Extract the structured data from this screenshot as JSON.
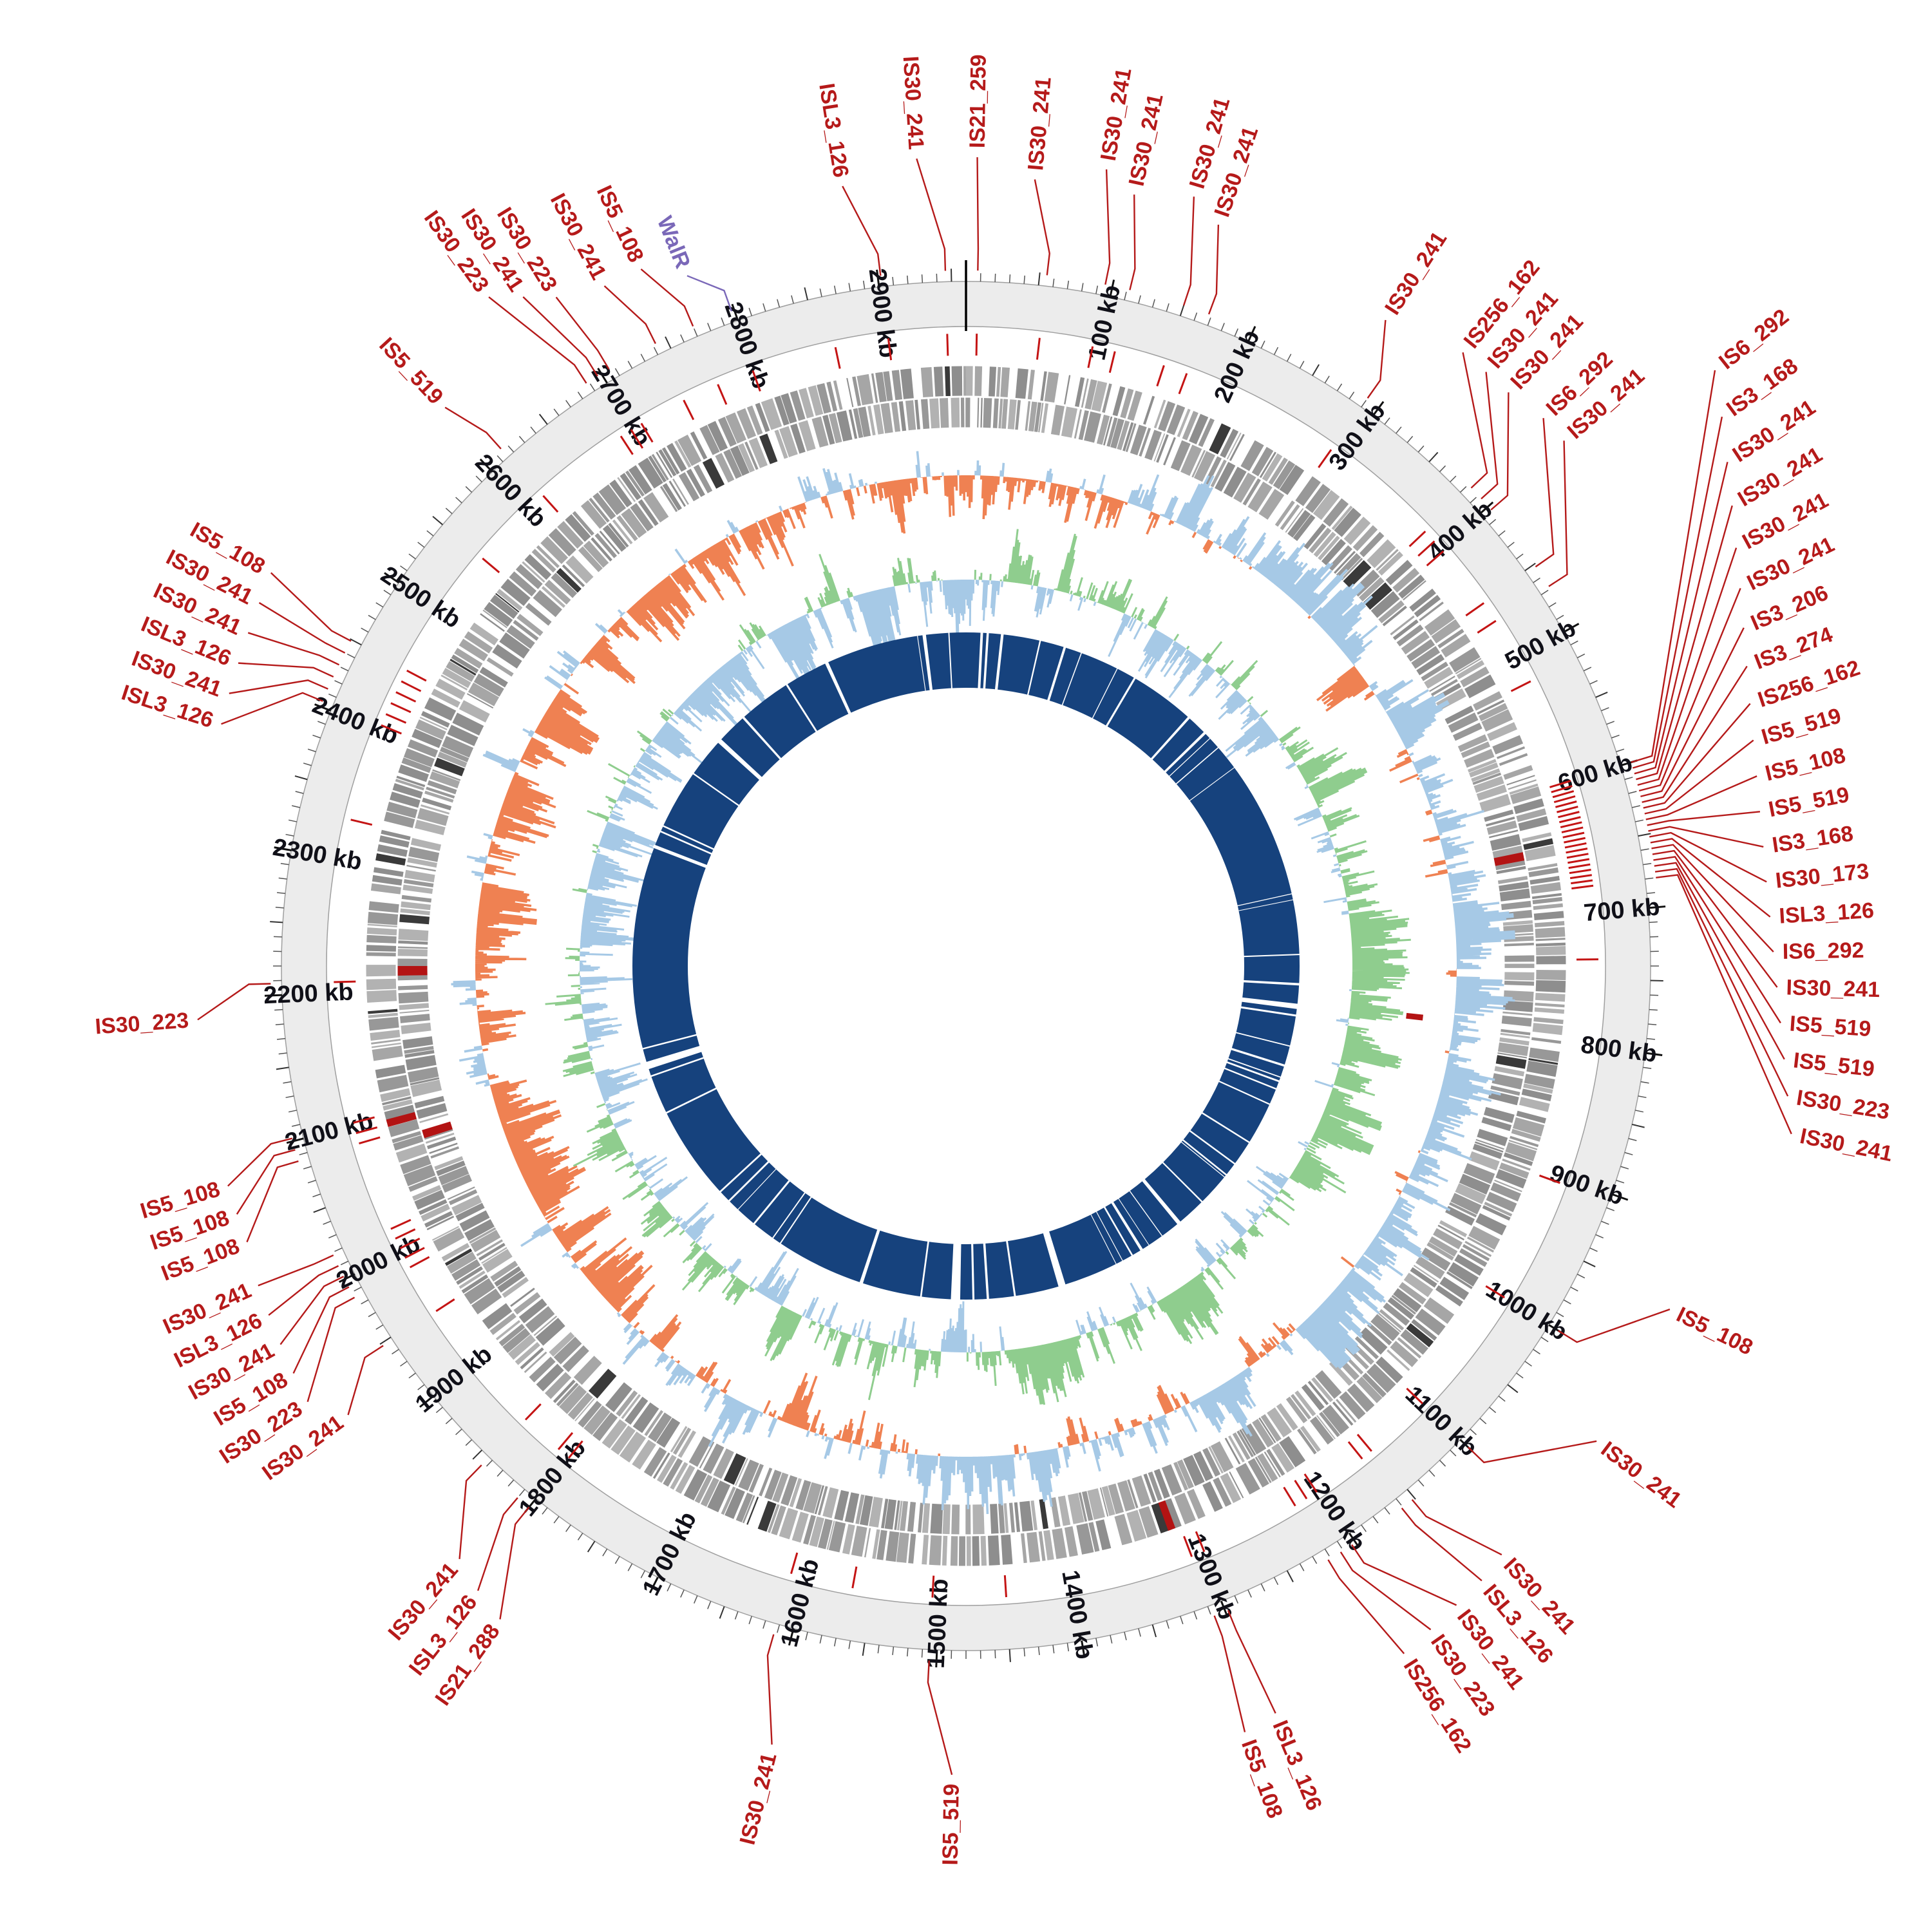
{
  "figure": {
    "kind": "circular genome map with insertion-sequence annotations",
    "aria": "Circular genome plot with IS element labels"
  },
  "chart_data": {
    "type": "circular-genome-map",
    "genome_length_kb": 2960,
    "tick_interval_kb": 100,
    "tick_unit": "kb",
    "tick_labels": [
      "100 kb",
      "200 kb",
      "300 kb",
      "400 kb",
      "500 kb",
      "600 kb",
      "700 kb",
      "800 kb",
      "900 kb",
      "1000 kb",
      "1100 kb",
      "1200 kb",
      "1300 kb",
      "1400 kb",
      "1500 kb",
      "1600 kb",
      "1700 kb",
      "1800 kb",
      "1900 kb",
      "2000 kb",
      "2100 kb",
      "2200 kb",
      "2300 kb",
      "2400 kb",
      "2500 kb",
      "2600 kb",
      "2700 kb",
      "2800 kb",
      "2900 kb"
    ],
    "colors": {
      "label_red": "#b51a1a",
      "walr_purple": "#7a68b8",
      "band_fill": "#ececec",
      "band_edge": "#9f9f9f",
      "tick_minor": "#555555",
      "tick_mid": "#333333",
      "tick_major": "#111111",
      "gene_grays": [
        "#989898",
        "#a6a6a6",
        "#8e8e8e",
        "#b2b2b2"
      ],
      "gene_dark": "#3a3a3a",
      "red_tick": "#c41414",
      "red_block": "#b31313",
      "navy": "#16427d"
    },
    "band": {
      "r_in": 993,
      "r_out": 1063
    },
    "ticks": {
      "minor_kb": 10,
      "mid_kb": 50,
      "major_kb": 100,
      "label_r": 1022
    },
    "red_tick_ring": {
      "r0": 948,
      "r1": 982,
      "width": 3
    },
    "gene_rows": [
      {
        "mid": 908.5,
        "h": 46,
        "seed": 11
      },
      {
        "mid": 859.5,
        "h": 46,
        "seed": 12
      }
    ],
    "hist_samples": 1600,
    "hist_tracks": [
      {
        "name": "gc-skew",
        "base": 762,
        "amp": 92,
        "seed": 21,
        "bias": 0.45,
        "phase": 0,
        "pos": "#a6c9e6",
        "neg": "#ef8152"
      },
      {
        "name": "gc-content",
        "base": 600,
        "amp": 92,
        "seed": 33,
        "bias": 0.3,
        "phase": 50,
        "pos": "#8fcd8e",
        "neg": "#a6c9e6"
      }
    ],
    "inner_ring": {
      "mid": 475,
      "width": 86,
      "seed": 77,
      "gap_count": 56,
      "extra_gaps": [
        {
          "a": 6,
          "w": 0.5
        },
        {
          "a": 17,
          "w": 0.45
        },
        {
          "a": 96.5,
          "w": 0.9
        },
        {
          "a": 140,
          "w": 0.7
        },
        {
          "a": 148,
          "w": 0.5
        },
        {
          "a": 163,
          "w": 0.9
        },
        {
          "a": 181,
          "w": 1.6
        },
        {
          "a": 198,
          "w": 0.6
        },
        {
          "a": 252,
          "w": 1.3
        },
        {
          "a": 312,
          "w": 0.8
        },
        {
          "a": 335,
          "w": 0.6
        },
        {
          "a": 352.5,
          "w": 0.6
        }
      ]
    },
    "red_blocks": [
      {
        "kb": 645,
        "mid": 859.5,
        "h": 46,
        "w": 7
      },
      {
        "kb": 790,
        "mid": 701,
        "h": 26,
        "w": 6
      },
      {
        "kb": 1312,
        "mid": 908.5,
        "h": 46,
        "w": 6
      },
      {
        "kb": 2075,
        "mid": 859.5,
        "h": 46,
        "w": 7
      },
      {
        "kb": 2092,
        "mid": 908.5,
        "h": 46,
        "w": 6
      },
      {
        "kb": 2212,
        "mid": 859.5,
        "h": 46,
        "w": 8
      }
    ],
    "extra_red_tick_kb": [
      520,
      735,
      905,
      1450,
      1565,
      2330,
      2550,
      2862
    ],
    "leaders": {
      "r_start": 1080,
      "r_elbow": 1114,
      "width": 2.4
    },
    "is_labels": [
      {
        "t": "IS5_519",
        "kb": 2615,
        "la": 317,
        "lr": 1200
      },
      {
        "t": "IS30_223",
        "kb": 2688,
        "la": 324.5,
        "lr": 1290
      },
      {
        "t": "IS30_241",
        "kb": 2697,
        "la": 326.5,
        "lr": 1260
      },
      {
        "t": "IS30_223",
        "kb": 2706,
        "la": 328.5,
        "lr": 1232
      },
      {
        "t": "IS30_241",
        "kb": 2742,
        "la": 332,
        "lr": 1210
      },
      {
        "t": "IS5_108",
        "kb": 2770,
        "la": 335,
        "lr": 1208
      },
      {
        "t": "WalR",
        "kb": 2798,
        "la": 338,
        "lr": 1170,
        "color": "#7a68b8"
      },
      {
        "t": "ISL3_126",
        "kb": 2902,
        "la": 351,
        "lr": 1240
      },
      {
        "t": "IS30_241",
        "kb": 2946,
        "la": 356.5,
        "lr": 1270
      },
      {
        "t": "IS21_259",
        "kb": 8,
        "la": 0.8,
        "lr": 1270
      },
      {
        "t": "IS30_241",
        "kb": 55,
        "la": 5,
        "lr": 1240
      },
      {
        "t": "IS30_241",
        "kb": 95,
        "la": 10,
        "lr": 1270
      },
      {
        "t": "IS30_241",
        "kb": 112,
        "la": 12.3,
        "lr": 1240
      },
      {
        "t": "IS30_241",
        "kb": 150,
        "la": 16.5,
        "lr": 1260
      },
      {
        "t": "IS30_241",
        "kb": 168,
        "la": 18.8,
        "lr": 1230
      },
      {
        "t": "IS30_241",
        "kb": 290,
        "la": 33,
        "lr": 1210
      },
      {
        "t": "IS256_162",
        "kb": 383,
        "la": 39,
        "lr": 1240
      },
      {
        "t": "IS30_241",
        "kb": 393,
        "la": 41.2,
        "lr": 1240
      },
      {
        "t": "IS30_241",
        "kb": 403,
        "la": 43.4,
        "lr": 1240
      },
      {
        "t": "IS6_292",
        "kb": 452,
        "la": 46.5,
        "lr": 1250
      },
      {
        "t": "IS30_241",
        "kb": 468,
        "la": 48.7,
        "lr": 1250
      },
      {
        "t": "IS6_292",
        "kb": 600,
        "la": 51.5,
        "lr": 1500
      },
      {
        "t": "IS3_168",
        "kb": 604,
        "la": 54,
        "lr": 1465
      },
      {
        "t": "IS30_241",
        "kb": 608,
        "la": 56.5,
        "lr": 1432
      },
      {
        "t": "IS30_241",
        "kb": 612,
        "la": 59,
        "lr": 1402
      },
      {
        "t": "IS30_241",
        "kb": 616,
        "la": 61.5,
        "lr": 1375
      },
      {
        "t": "IS30_241",
        "kb": 620,
        "la": 64,
        "lr": 1352
      },
      {
        "t": "IS3_206",
        "kb": 624,
        "la": 66.5,
        "lr": 1331
      },
      {
        "t": "IS3_274",
        "kb": 628,
        "la": 69,
        "lr": 1313
      },
      {
        "t": "IS256_162",
        "kb": 632,
        "la": 71.5,
        "lr": 1298
      },
      {
        "t": "IS5_519",
        "kb": 636,
        "la": 74,
        "lr": 1286
      },
      {
        "t": "IS5_108",
        "kb": 640,
        "la": 76.5,
        "lr": 1277
      },
      {
        "t": "IS5_519",
        "kb": 644,
        "la": 79,
        "lr": 1270
      },
      {
        "t": "IS3_168",
        "kb": 648,
        "la": 81.5,
        "lr": 1266
      },
      {
        "t": "IS30_173",
        "kb": 652,
        "la": 84,
        "lr": 1264
      },
      {
        "t": "ISL3_126",
        "kb": 656,
        "la": 86.5,
        "lr": 1265
      },
      {
        "t": "IS6_292",
        "kb": 660,
        "la": 89,
        "lr": 1268
      },
      {
        "t": "IS30_241",
        "kb": 664,
        "la": 91.5,
        "lr": 1274
      },
      {
        "t": "IS5_519",
        "kb": 668,
        "la": 94,
        "lr": 1282
      },
      {
        "t": "IS5_519",
        "kb": 672,
        "la": 96.5,
        "lr": 1293
      },
      {
        "t": "IS30_223",
        "kb": 676,
        "la": 99,
        "lr": 1306
      },
      {
        "t": "IS30_241",
        "kb": 680,
        "la": 101.5,
        "lr": 1322
      },
      {
        "t": "IS5_108",
        "kb": 1000,
        "la": 116,
        "lr": 1230
      },
      {
        "t": "IS30_241",
        "kb": 1100,
        "la": 127,
        "lr": 1240
      },
      {
        "t": "IS30_241",
        "kb": 1152,
        "la": 137.7,
        "lr": 1250
      },
      {
        "t": "ISL3_126",
        "kb": 1161,
        "la": 140,
        "lr": 1260
      },
      {
        "t": "IS30_241",
        "kb": 1203,
        "la": 142.5,
        "lr": 1265
      },
      {
        "t": "IS30_223",
        "kb": 1212,
        "la": 145,
        "lr": 1272
      },
      {
        "t": "IS256_162",
        "kb": 1222,
        "la": 147.5,
        "lr": 1280
      },
      {
        "t": "ISL3_126",
        "kb": 1298,
        "la": 157.5,
        "lr": 1270
      },
      {
        "t": "IS5_108",
        "kb": 1308,
        "la": 160,
        "lr": 1280
      },
      {
        "t": "IS5_519",
        "kb": 1505,
        "la": 181,
        "lr": 1270
      },
      {
        "t": "IS30_241",
        "kb": 1612,
        "la": 194,
        "lr": 1260
      },
      {
        "t": "IS21_288",
        "kb": 1800,
        "la": 215.5,
        "lr": 1260
      },
      {
        "t": "ISL3_126",
        "kb": 1810,
        "la": 218,
        "lr": 1245
      },
      {
        "t": "IS30_241",
        "kb": 1843,
        "la": 220.5,
        "lr": 1225
      },
      {
        "t": "IS30_241",
        "kb": 1948,
        "la": 234,
        "lr": 1200
      },
      {
        "t": "IS30_223",
        "kb": 1986,
        "la": 236.5,
        "lr": 1240
      },
      {
        "t": "IS5_108",
        "kb": 1994,
        "la": 238.8,
        "lr": 1235
      },
      {
        "t": "IS30_241",
        "kb": 2002,
        "la": 241.1,
        "lr": 1230
      },
      {
        "t": "ISL3_126",
        "kb": 2010,
        "la": 243.4,
        "lr": 1225
      },
      {
        "t": "IS30_241",
        "kb": 2018,
        "la": 245.7,
        "lr": 1220
      },
      {
        "t": "IS5_108",
        "kb": 2086,
        "la": 249,
        "lr": 1210
      },
      {
        "t": "IS5_108",
        "kb": 2094,
        "la": 251.2,
        "lr": 1210
      },
      {
        "t": "IS5_108",
        "kb": 2102,
        "la": 253.4,
        "lr": 1210
      },
      {
        "t": "IS30_223",
        "kb": 2208,
        "la": 266,
        "lr": 1210
      },
      {
        "t": "ISL3_126",
        "kb": 2404,
        "la": 288,
        "lr": 1230
      },
      {
        "t": "IS30_241",
        "kb": 2413,
        "la": 290.3,
        "lr": 1234
      },
      {
        "t": "ISL3_126",
        "kb": 2422,
        "la": 292.6,
        "lr": 1238
      },
      {
        "t": "IS30_241",
        "kb": 2431,
        "la": 294.9,
        "lr": 1243
      },
      {
        "t": "IS30_241",
        "kb": 2440,
        "la": 297.2,
        "lr": 1248
      },
      {
        "t": "IS5_108",
        "kb": 2449,
        "la": 299.5,
        "lr": 1254
      }
    ]
  }
}
